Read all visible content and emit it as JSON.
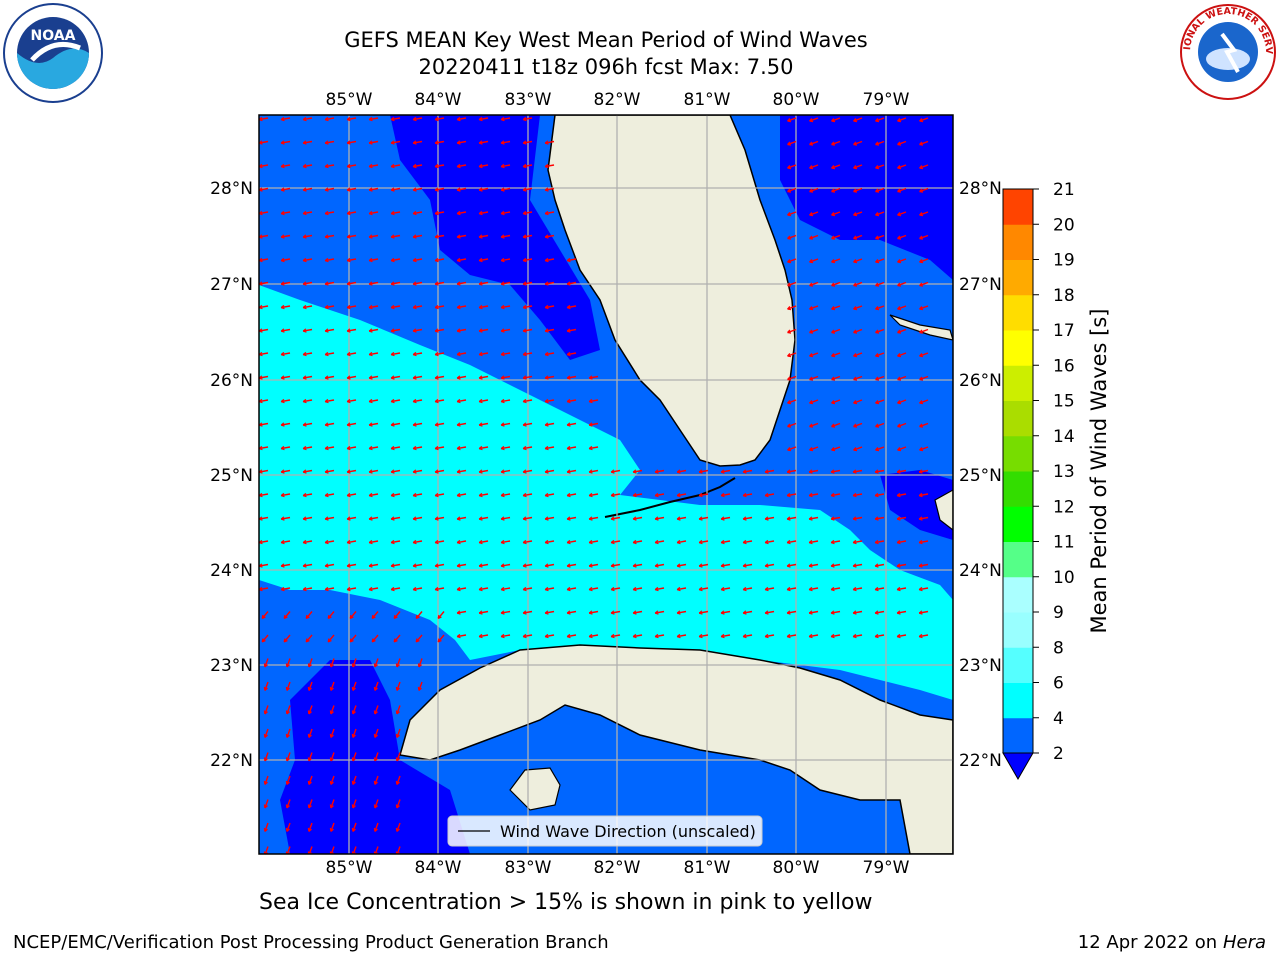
{
  "title": {
    "line1": "GEFS MEAN Key West Mean Period of Wind Waves",
    "line2": "20220411 t18z 096h fcst   Max: 7.50"
  },
  "map": {
    "lon_ticks": [
      "85°W",
      "84°W",
      "83°W",
      "82°W",
      "81°W",
      "80°W",
      "79°W"
    ],
    "lat_ticks": [
      "28°N",
      "27°N",
      "26°N",
      "25°N",
      "24°N",
      "23°N",
      "22°N"
    ],
    "legend_label": "Wind Wave Direction (unscaled)"
  },
  "colorbar": {
    "label": "Mean Period of Wind Waves [s]",
    "ticks": [
      "2",
      "4",
      "6",
      "8",
      "9",
      "10",
      "11",
      "12",
      "13",
      "14",
      "15",
      "16",
      "17",
      "18",
      "19",
      "20",
      "21"
    ],
    "colors": [
      "#0066ff",
      "#00ffff",
      "#55ffff",
      "#99ffff",
      "#aaffff",
      "#55ff88",
      "#00ff00",
      "#33dd00",
      "#77dd00",
      "#aadd00",
      "#ccee00",
      "#ffff00",
      "#ffdd00",
      "#ffaa00",
      "#ff8800",
      "#ff4400",
      "#ff0000"
    ],
    "extend_color": "#0000ff"
  },
  "caption": "Sea Ice Concentration > 15% is shown in pink to yellow",
  "footer": {
    "left": "NCEP/EMC/Verification Post Processing Product Generation Branch",
    "right_prefix": "12 Apr 2022 on ",
    "right_host": "Hera"
  },
  "logos": {
    "left": "NOAA",
    "right": "NATIONAL WEATHER SERVICE"
  },
  "colors": {
    "land": "#eeeedd",
    "arrow": "#ff0000",
    "grid": "#b0b0b0"
  }
}
